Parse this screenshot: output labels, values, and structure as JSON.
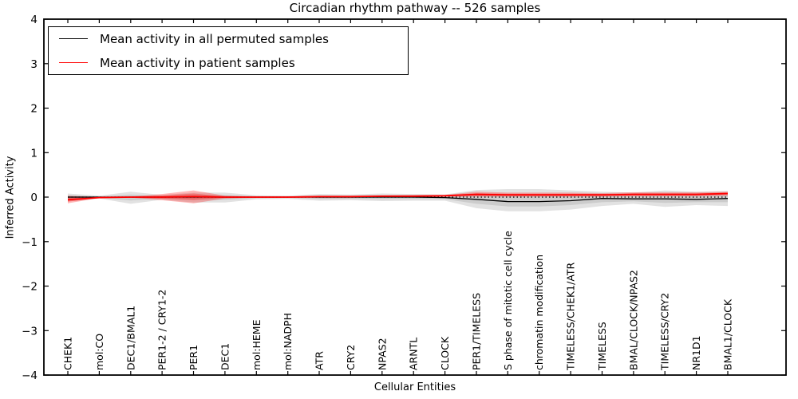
{
  "title": "Circadian rhythm pathway -- 526 samples",
  "legend": {
    "items": [
      {
        "label": "Mean activity in all permuted samples",
        "color": "#000000"
      },
      {
        "label": "Mean activity in patient samples",
        "color": "#ff0000"
      }
    ]
  },
  "chart_data": {
    "type": "line",
    "title": "Circadian rhythm pathway -- 526 samples",
    "xlabel": "Cellular Entities",
    "ylabel": "Inferred Activity",
    "ylim": [
      -4,
      4
    ],
    "yticks": [
      -4,
      -3,
      -2,
      -1,
      0,
      1,
      2,
      3,
      4
    ],
    "grid": false,
    "legend_position": "upper left",
    "categories": [
      "CHEK1",
      "mol:CO",
      "DEC1/BMAL1",
      "PER1-2 / CRY1-2",
      "PER1",
      "DEC1",
      "mol:HEME",
      "mol:NADPH",
      "ATR",
      "CRY2",
      "NPAS2",
      "ARNTL",
      "CLOCK",
      "PER1/TIMELESS",
      "S phase of mitotic cell cycle",
      "chromatin modification",
      "TIMELESS/CHEK1/ATR",
      "TIMELESS",
      "BMAL/CLOCK/NPAS2",
      "TIMELESS/CRY2",
      "NR1D1",
      "BMAL1/CLOCK"
    ],
    "series": [
      {
        "name": "zero-reference",
        "style": "dotted",
        "color": "#000000",
        "values": [
          0,
          0,
          0,
          0,
          0,
          0,
          0,
          0,
          0,
          0,
          0,
          0,
          0,
          0,
          0,
          0,
          0,
          0,
          0,
          0,
          0,
          0
        ]
      },
      {
        "name": "Mean activity in all permuted samples",
        "style": "solid",
        "color": "#000000",
        "values": [
          0,
          0,
          0,
          0,
          0,
          0,
          0,
          0,
          0,
          0,
          0,
          0,
          -0.01,
          -0.05,
          -0.1,
          -0.1,
          -0.08,
          -0.03,
          -0.04,
          -0.04,
          -0.05,
          -0.03
        ]
      },
      {
        "name": "Mean activity in patient samples",
        "style": "solid",
        "color": "#ff0000",
        "values": [
          -0.06,
          -0.01,
          0,
          0,
          0.01,
          0,
          0,
          0,
          0.01,
          0.01,
          0.02,
          0.02,
          0.03,
          0.06,
          0.05,
          0.05,
          0.05,
          0.05,
          0.06,
          0.06,
          0.06,
          0.08
        ]
      }
    ],
    "bands": [
      {
        "name": "permuted-std-band",
        "color": "#8c8c8c",
        "opacity": 0.25,
        "center_series": 1,
        "upper": [
          0.08,
          0.03,
          0.12,
          0.05,
          0.1,
          0.1,
          0.04,
          0.03,
          0.07,
          0.06,
          0.08,
          0.07,
          0.06,
          0.16,
          0.18,
          0.18,
          0.15,
          0.12,
          0.1,
          0.15,
          0.12,
          0.14
        ],
        "lower": [
          -0.1,
          -0.03,
          -0.15,
          -0.06,
          -0.12,
          -0.12,
          -0.05,
          -0.04,
          -0.08,
          -0.07,
          -0.09,
          -0.08,
          -0.08,
          -0.25,
          -0.32,
          -0.32,
          -0.28,
          -0.2,
          -0.15,
          -0.22,
          -0.18,
          -0.2
        ]
      },
      {
        "name": "patient-std-band",
        "color": "#ff0000",
        "opacity": 0.28,
        "center_series": 2,
        "upper": [
          0.03,
          0.0,
          0.01,
          0.07,
          0.15,
          0.03,
          0.01,
          0.01,
          0.03,
          0.03,
          0.04,
          0.05,
          0.05,
          0.12,
          0.1,
          0.1,
          0.1,
          0.09,
          0.11,
          0.11,
          0.11,
          0.12
        ],
        "lower": [
          -0.14,
          -0.02,
          -0.01,
          -0.07,
          -0.14,
          -0.03,
          -0.01,
          -0.01,
          -0.02,
          -0.02,
          0.0,
          0.0,
          0.01,
          0.01,
          0.01,
          0.01,
          0.01,
          0.01,
          0.02,
          0.02,
          0.02,
          0.03
        ]
      }
    ]
  }
}
